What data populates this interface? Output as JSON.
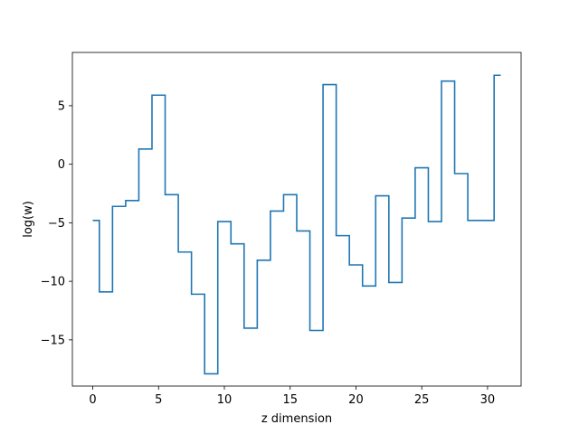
{
  "chart_data": {
    "type": "line",
    "drawstyle": "steps-mid",
    "xlabel": "z dimension",
    "ylabel": "log(w)",
    "xlim": [
      -1.55,
      32.55
    ],
    "ylim": [
      -18.95,
      9.55
    ],
    "xticks": [
      0,
      5,
      10,
      15,
      20,
      25,
      30
    ],
    "xtick_labels": [
      "0",
      "5",
      "10",
      "15",
      "20",
      "25",
      "30"
    ],
    "yticks": [
      -15,
      -10,
      -5,
      0,
      5
    ],
    "ytick_labels": [
      "−15",
      "−10",
      "−5",
      "0",
      "5"
    ],
    "grid": false,
    "series": [
      {
        "color": "#1f77b4",
        "x": [
          0,
          1,
          2,
          3,
          4,
          5,
          6,
          7,
          8,
          9,
          10,
          11,
          12,
          13,
          14,
          15,
          16,
          17,
          18,
          19,
          20,
          21,
          22,
          23,
          24,
          25,
          26,
          27,
          28,
          29,
          30,
          31
        ],
        "y": [
          -4.8,
          -10.9,
          -3.6,
          -3.1,
          1.3,
          5.9,
          -2.6,
          -7.5,
          -11.1,
          -17.9,
          -4.9,
          -6.8,
          -14.0,
          -8.2,
          -4.0,
          -2.6,
          -5.7,
          -14.2,
          6.8,
          -6.1,
          -8.6,
          -10.4,
          -2.7,
          -10.1,
          -4.6,
          -0.3,
          -4.9,
          7.1,
          -0.8,
          -4.8,
          -4.8,
          7.6
        ]
      }
    ]
  }
}
